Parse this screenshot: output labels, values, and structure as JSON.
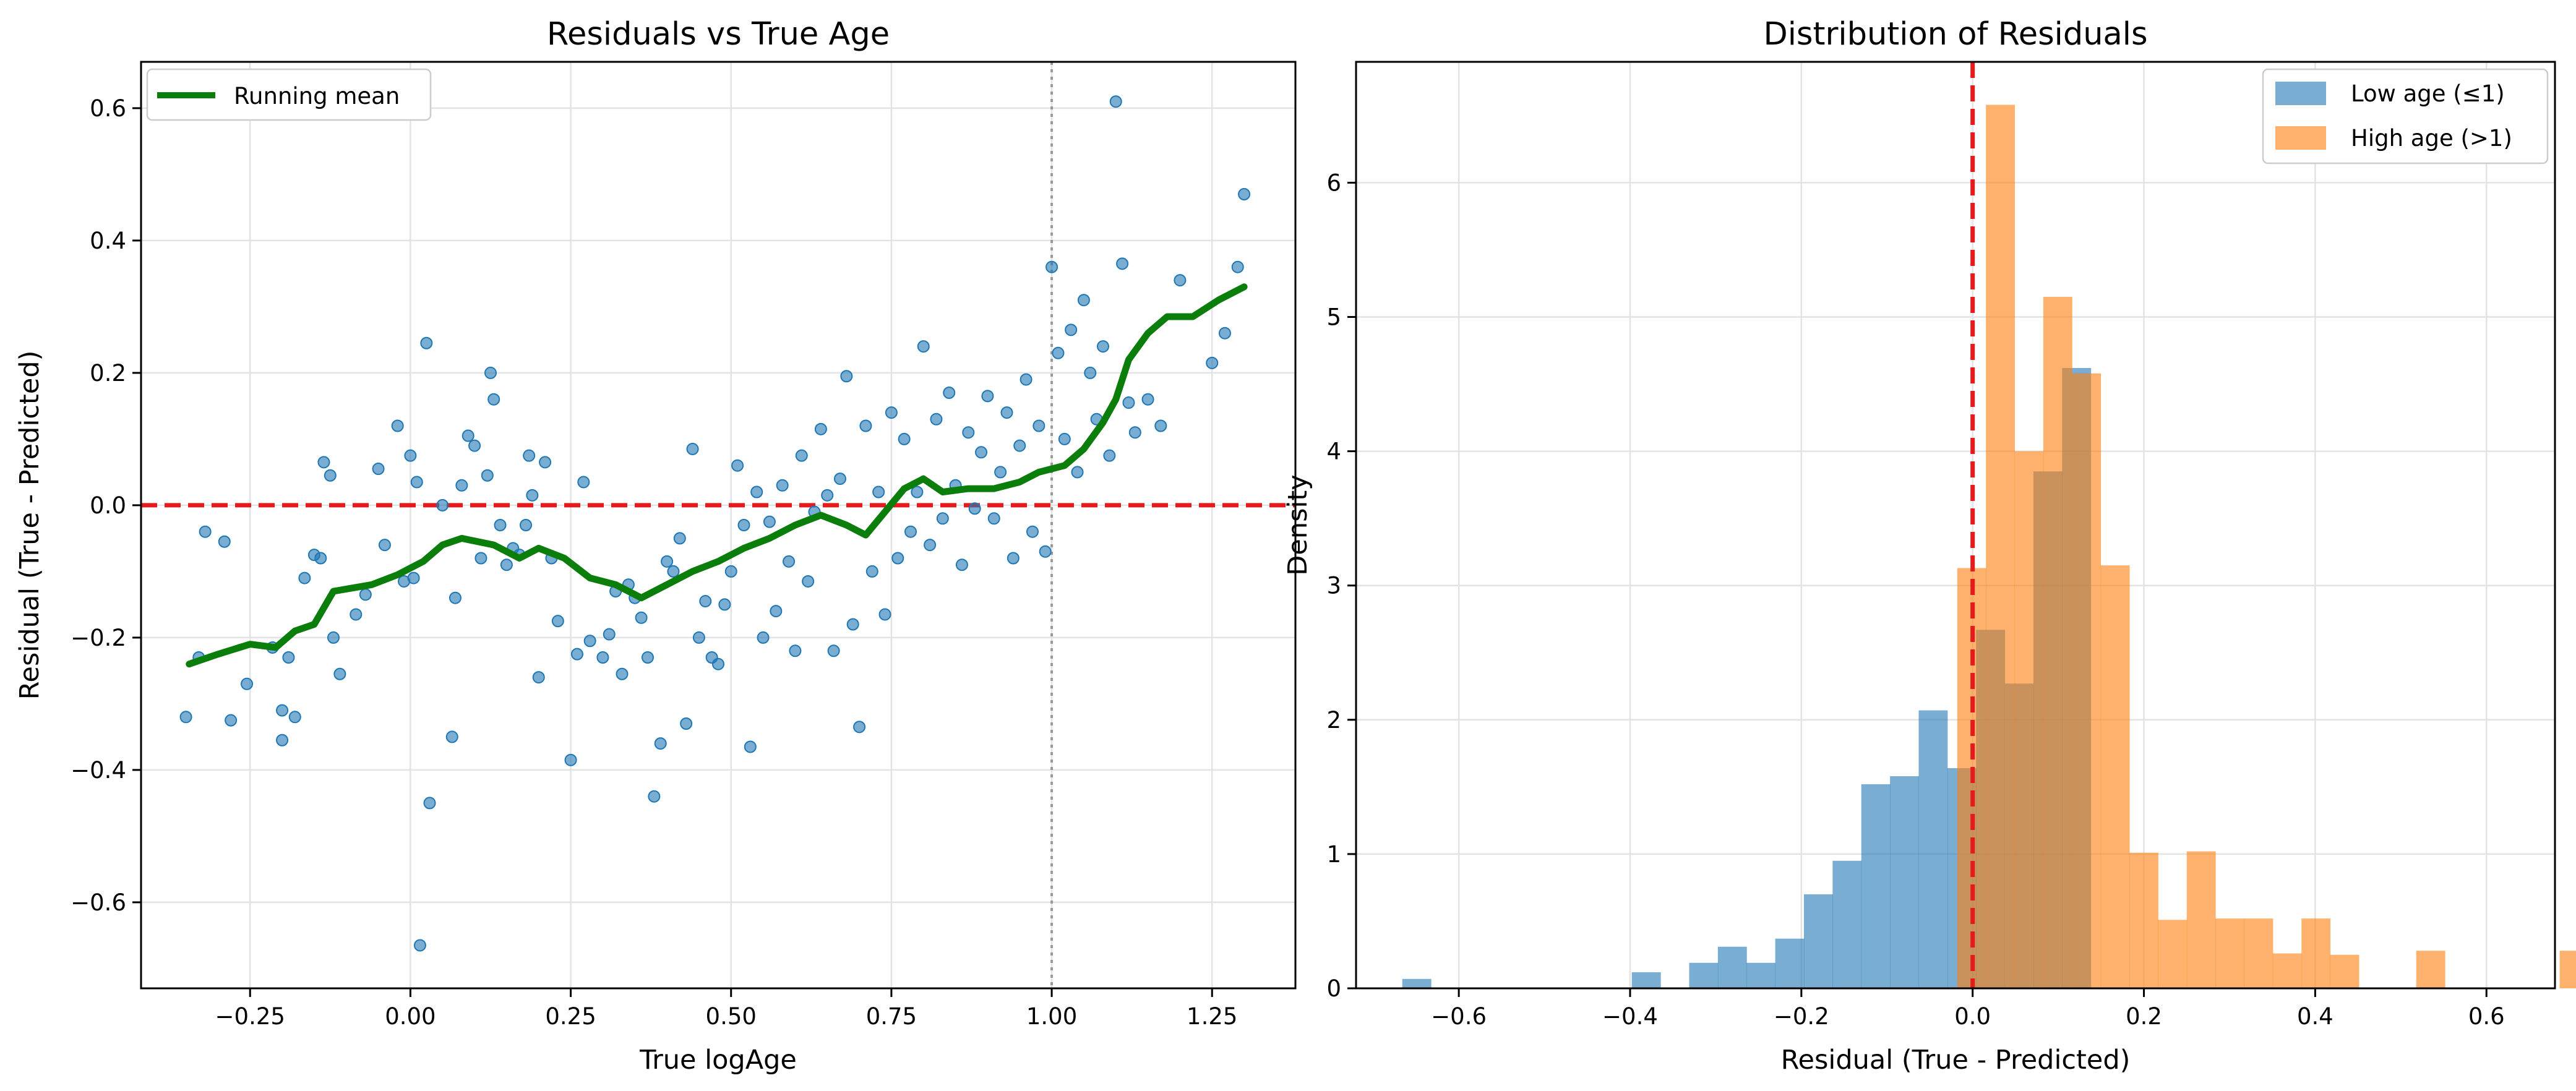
{
  "chart_data": [
    {
      "type": "scatter",
      "title": "Residuals vs True Age",
      "xlabel": "True logAge",
      "ylabel": "Residual (True - Predicted)",
      "xlim": [
        -0.42,
        1.38
      ],
      "ylim": [
        -0.73,
        0.67
      ],
      "xticks": [
        -0.25,
        0.0,
        0.25,
        0.5,
        0.75,
        1.0,
        1.25
      ],
      "xtick_labels": [
        "−0.25",
        "0.00",
        "0.25",
        "0.50",
        "0.75",
        "1.00",
        "1.25"
      ],
      "yticks": [
        -0.6,
        -0.4,
        -0.2,
        0.0,
        0.2,
        0.4,
        0.6
      ],
      "ytick_labels": [
        "−0.6",
        "−0.4",
        "−0.2",
        "0.0",
        "0.2",
        "0.4",
        "0.6"
      ],
      "grid": true,
      "legend_position": "top-left",
      "reference_lines": [
        {
          "orientation": "horizontal",
          "value": 0.0,
          "color": "#e41a1c",
          "style": "dashed"
        },
        {
          "orientation": "vertical",
          "value": 1.0,
          "color": "#999999",
          "style": "dotted"
        }
      ],
      "series": [
        {
          "kind": "points",
          "color": "#1f77b4",
          "points": [
            [
              -0.35,
              -0.32
            ],
            [
              -0.33,
              -0.23
            ],
            [
              -0.32,
              -0.04
            ],
            [
              -0.29,
              -0.055
            ],
            [
              -0.28,
              -0.325
            ],
            [
              -0.255,
              -0.27
            ],
            [
              -0.215,
              -0.215
            ],
            [
              -0.2,
              -0.31
            ],
            [
              -0.2,
              -0.355
            ],
            [
              -0.19,
              -0.23
            ],
            [
              -0.18,
              -0.32
            ],
            [
              -0.165,
              -0.11
            ],
            [
              -0.15,
              -0.075
            ],
            [
              -0.14,
              -0.08
            ],
            [
              -0.135,
              0.065
            ],
            [
              -0.125,
              0.045
            ],
            [
              -0.12,
              -0.2
            ],
            [
              -0.11,
              -0.255
            ],
            [
              -0.085,
              -0.165
            ],
            [
              -0.07,
              -0.135
            ],
            [
              -0.05,
              0.055
            ],
            [
              -0.04,
              -0.06
            ],
            [
              -0.02,
              0.12
            ],
            [
              -0.01,
              -0.115
            ],
            [
              0.0,
              0.075
            ],
            [
              0.005,
              -0.11
            ],
            [
              0.01,
              0.035
            ],
            [
              0.015,
              -0.665
            ],
            [
              0.025,
              0.245
            ],
            [
              0.03,
              -0.45
            ],
            [
              0.05,
              0.0
            ],
            [
              0.065,
              -0.35
            ],
            [
              0.07,
              -0.14
            ],
            [
              0.08,
              0.03
            ],
            [
              0.09,
              0.105
            ],
            [
              0.1,
              0.09
            ],
            [
              0.11,
              -0.08
            ],
            [
              0.12,
              0.045
            ],
            [
              0.125,
              0.2
            ],
            [
              0.13,
              0.16
            ],
            [
              0.14,
              -0.03
            ],
            [
              0.15,
              -0.09
            ],
            [
              0.16,
              -0.065
            ],
            [
              0.17,
              -0.075
            ],
            [
              0.18,
              -0.03
            ],
            [
              0.185,
              0.075
            ],
            [
              0.19,
              0.015
            ],
            [
              0.2,
              -0.26
            ],
            [
              0.21,
              0.065
            ],
            [
              0.22,
              -0.08
            ],
            [
              0.23,
              -0.175
            ],
            [
              0.25,
              -0.385
            ],
            [
              0.26,
              -0.225
            ],
            [
              0.27,
              0.035
            ],
            [
              0.28,
              -0.205
            ],
            [
              0.3,
              -0.23
            ],
            [
              0.31,
              -0.195
            ],
            [
              0.32,
              -0.13
            ],
            [
              0.33,
              -0.255
            ],
            [
              0.34,
              -0.12
            ],
            [
              0.35,
              -0.14
            ],
            [
              0.36,
              -0.17
            ],
            [
              0.37,
              -0.23
            ],
            [
              0.38,
              -0.44
            ],
            [
              0.39,
              -0.36
            ],
            [
              0.4,
              -0.085
            ],
            [
              0.41,
              -0.1
            ],
            [
              0.42,
              -0.05
            ],
            [
              0.43,
              -0.33
            ],
            [
              0.44,
              0.085
            ],
            [
              0.45,
              -0.2
            ],
            [
              0.46,
              -0.145
            ],
            [
              0.47,
              -0.23
            ],
            [
              0.48,
              -0.24
            ],
            [
              0.49,
              -0.15
            ],
            [
              0.5,
              -0.1
            ],
            [
              0.51,
              0.06
            ],
            [
              0.52,
              -0.03
            ],
            [
              0.53,
              -0.365
            ],
            [
              0.54,
              0.02
            ],
            [
              0.55,
              -0.2
            ],
            [
              0.56,
              -0.025
            ],
            [
              0.57,
              -0.16
            ],
            [
              0.58,
              0.03
            ],
            [
              0.59,
              -0.085
            ],
            [
              0.6,
              -0.22
            ],
            [
              0.61,
              0.075
            ],
            [
              0.62,
              -0.115
            ],
            [
              0.63,
              -0.01
            ],
            [
              0.64,
              0.115
            ],
            [
              0.65,
              0.015
            ],
            [
              0.66,
              -0.22
            ],
            [
              0.67,
              0.04
            ],
            [
              0.68,
              0.195
            ],
            [
              0.69,
              -0.18
            ],
            [
              0.7,
              -0.335
            ],
            [
              0.71,
              0.12
            ],
            [
              0.72,
              -0.1
            ],
            [
              0.73,
              0.02
            ],
            [
              0.74,
              -0.165
            ],
            [
              0.75,
              0.14
            ],
            [
              0.76,
              -0.08
            ],
            [
              0.77,
              0.1
            ],
            [
              0.78,
              -0.04
            ],
            [
              0.79,
              0.02
            ],
            [
              0.8,
              0.24
            ],
            [
              0.81,
              -0.06
            ],
            [
              0.82,
              0.13
            ],
            [
              0.83,
              -0.02
            ],
            [
              0.84,
              0.17
            ],
            [
              0.85,
              0.03
            ],
            [
              0.86,
              -0.09
            ],
            [
              0.87,
              0.11
            ],
            [
              0.88,
              -0.005
            ],
            [
              0.89,
              0.08
            ],
            [
              0.9,
              0.165
            ],
            [
              0.91,
              -0.02
            ],
            [
              0.92,
              0.05
            ],
            [
              0.93,
              0.14
            ],
            [
              0.94,
              -0.08
            ],
            [
              0.95,
              0.09
            ],
            [
              0.96,
              0.19
            ],
            [
              0.97,
              -0.04
            ],
            [
              0.98,
              0.12
            ],
            [
              0.99,
              -0.07
            ],
            [
              1.0,
              0.36
            ],
            [
              1.01,
              0.23
            ],
            [
              1.02,
              0.1
            ],
            [
              1.03,
              0.265
            ],
            [
              1.04,
              0.05
            ],
            [
              1.05,
              0.31
            ],
            [
              1.06,
              0.2
            ],
            [
              1.07,
              0.13
            ],
            [
              1.08,
              0.24
            ],
            [
              1.09,
              0.075
            ],
            [
              1.1,
              0.61
            ],
            [
              1.11,
              0.365
            ],
            [
              1.12,
              0.155
            ],
            [
              1.13,
              0.11
            ],
            [
              1.15,
              0.16
            ],
            [
              1.17,
              0.12
            ],
            [
              1.2,
              0.34
            ],
            [
              1.25,
              0.215
            ],
            [
              1.27,
              0.26
            ],
            [
              1.29,
              0.36
            ],
            [
              1.3,
              0.47
            ]
          ]
        },
        {
          "kind": "line",
          "name": "Running mean",
          "color": "#0a7d0a",
          "points": [
            [
              -0.345,
              -0.24
            ],
            [
              -0.3,
              -0.225
            ],
            [
              -0.25,
              -0.21
            ],
            [
              -0.21,
              -0.215
            ],
            [
              -0.18,
              -0.19
            ],
            [
              -0.15,
              -0.18
            ],
            [
              -0.12,
              -0.13
            ],
            [
              -0.06,
              -0.12
            ],
            [
              -0.02,
              -0.105
            ],
            [
              0.02,
              -0.085
            ],
            [
              0.05,
              -0.06
            ],
            [
              0.08,
              -0.05
            ],
            [
              0.13,
              -0.06
            ],
            [
              0.17,
              -0.08
            ],
            [
              0.2,
              -0.065
            ],
            [
              0.24,
              -0.08
            ],
            [
              0.28,
              -0.11
            ],
            [
              0.32,
              -0.12
            ],
            [
              0.36,
              -0.14
            ],
            [
              0.4,
              -0.12
            ],
            [
              0.44,
              -0.1
            ],
            [
              0.48,
              -0.085
            ],
            [
              0.52,
              -0.065
            ],
            [
              0.56,
              -0.05
            ],
            [
              0.6,
              -0.03
            ],
            [
              0.64,
              -0.015
            ],
            [
              0.68,
              -0.03
            ],
            [
              0.71,
              -0.045
            ],
            [
              0.74,
              -0.01
            ],
            [
              0.77,
              0.025
            ],
            [
              0.8,
              0.04
            ],
            [
              0.83,
              0.02
            ],
            [
              0.87,
              0.025
            ],
            [
              0.91,
              0.025
            ],
            [
              0.95,
              0.035
            ],
            [
              0.98,
              0.05
            ],
            [
              1.02,
              0.06
            ],
            [
              1.05,
              0.085
            ],
            [
              1.08,
              0.125
            ],
            [
              1.1,
              0.16
            ],
            [
              1.12,
              0.22
            ],
            [
              1.15,
              0.26
            ],
            [
              1.18,
              0.285
            ],
            [
              1.22,
              0.285
            ],
            [
              1.26,
              0.31
            ],
            [
              1.3,
              0.33
            ]
          ]
        }
      ]
    },
    {
      "type": "histogram",
      "title": "Distribution of Residuals",
      "xlabel": "Residual (True - Predicted)",
      "ylabel": "Density",
      "xlim": [
        -0.72,
        0.68
      ],
      "ylim": [
        0,
        6.9
      ],
      "xticks": [
        -0.6,
        -0.4,
        -0.2,
        0.0,
        0.2,
        0.4,
        0.6
      ],
      "xtick_labels": [
        "−0.6",
        "−0.4",
        "−0.2",
        "0.0",
        "0.2",
        "0.4",
        "0.6"
      ],
      "yticks": [
        0,
        1,
        2,
        3,
        4,
        5,
        6
      ],
      "ytick_labels": [
        "0",
        "1",
        "2",
        "3",
        "4",
        "5",
        "6"
      ],
      "grid": true,
      "legend_position": "top-right",
      "reference_lines": [
        {
          "orientation": "vertical",
          "value": 0.0,
          "color": "#e41a1c",
          "style": "dashed"
        }
      ],
      "series": [
        {
          "name": "Low age (≤1)",
          "color": "#1f77b4",
          "bin_start": -0.666,
          "bin_width": 0.0335,
          "values": [
            0.07,
            0,
            0,
            0,
            0,
            0,
            0,
            0,
            0.12,
            0,
            0.19,
            0.31,
            0.19,
            0.37,
            0.7,
            0.95,
            1.52,
            1.58,
            2.07,
            1.64,
            2.67,
            2.27,
            3.85,
            4.62
          ]
        },
        {
          "name": "High age (>1)",
          "color": "#ff7f0e",
          "bin_start": -0.018,
          "bin_width": 0.0335,
          "values": [
            3.13,
            6.58,
            4.0,
            5.15,
            4.58,
            3.15,
            1.01,
            0.51,
            1.02,
            0.52,
            0.52,
            0.26,
            0.52,
            0.25,
            0,
            0,
            0.28,
            0,
            0,
            0,
            0,
            0.28
          ]
        }
      ]
    }
  ]
}
